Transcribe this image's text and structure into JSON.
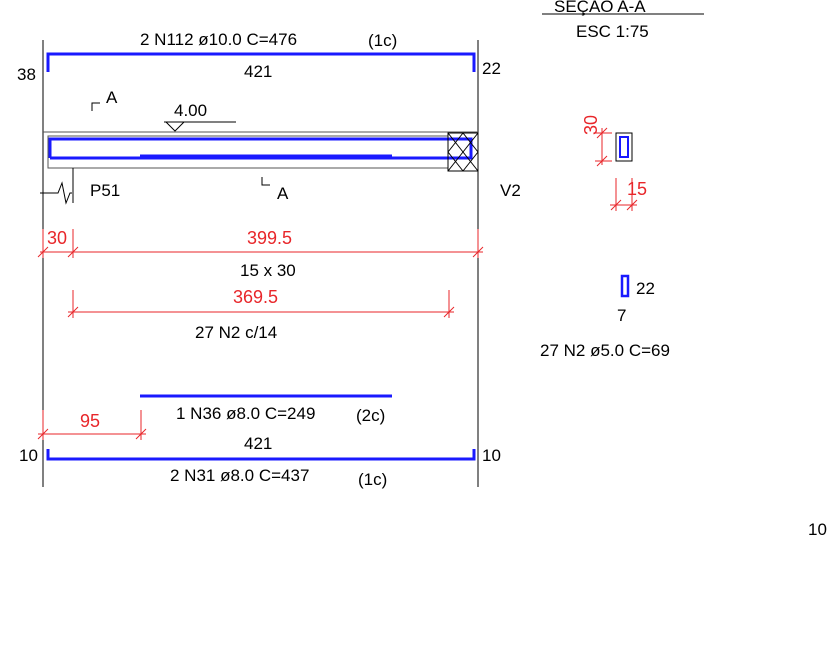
{
  "top_bar": {
    "label": "2 N112 ø10.0 C=476",
    "layer": "(1c)",
    "length": "421",
    "left_hook": "38",
    "right_hook": "22"
  },
  "section_marks": {
    "cut_label_top": "A",
    "cut_label_bottom": "A",
    "elevation": "4.00"
  },
  "supports": {
    "left": "P51",
    "right": "V2"
  },
  "dimensions": {
    "support_width": "30",
    "span": "399.5",
    "beam_size": "15 x 30",
    "stirrup_span": "369.5",
    "stirrup_spec": "27 N2 c/14",
    "extra_bar_offset": "95"
  },
  "middle_bar": {
    "label": "1 N36 ø8.0 C=249",
    "layer": "(2c)"
  },
  "bottom_bar": {
    "length": "421",
    "label": "2 N31 ø8.0 C=437",
    "layer": "(1c)",
    "left_hook": "10",
    "right_hook": "10"
  },
  "section": {
    "title": "SEÇÃO A-A",
    "scale": "ESC 1:75",
    "height": "30",
    "width": "15"
  },
  "stirrup_detail": {
    "height": "22",
    "width": "7",
    "label": "27 N2 ø5.0 C=69"
  },
  "edge_label": "10",
  "colors": {
    "rebar": "#1a1aff",
    "dimension": "#e8262a",
    "line": "#000000"
  }
}
